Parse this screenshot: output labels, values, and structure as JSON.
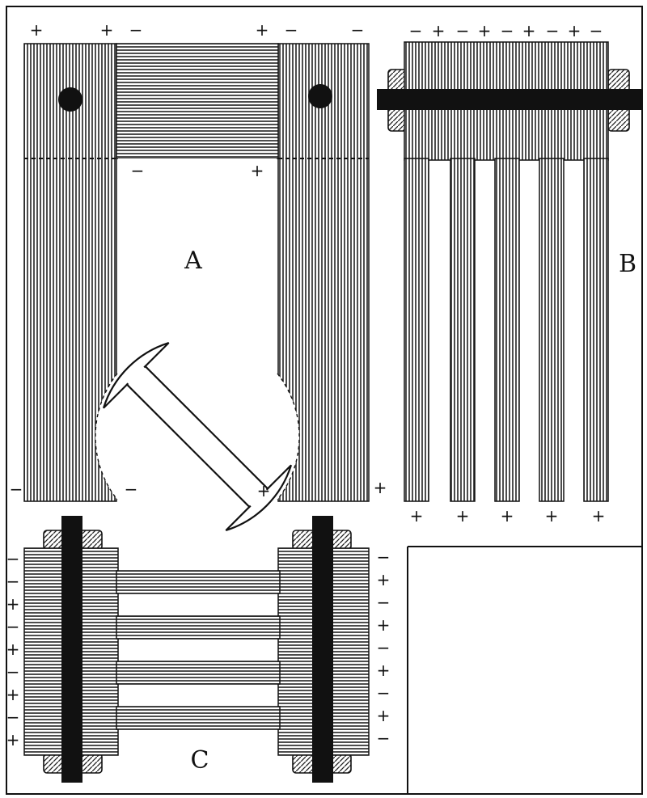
{
  "figure": {
    "labels": {
      "a": "A",
      "b": "B",
      "c": "C"
    },
    "colors": {
      "ink": "#111111",
      "paper": "#ffffff",
      "hatch": "#222222"
    },
    "polarity": {
      "a_top": [
        "+",
        "+",
        "−",
        "+",
        "−",
        "−"
      ],
      "a_inner": [
        "−",
        "+"
      ],
      "a_bottom": [
        "−",
        "−",
        "+",
        "+"
      ],
      "b_top": [
        "−",
        "+",
        "−",
        "+",
        "−",
        "+",
        "−",
        "+",
        "−"
      ],
      "b_bottom": [
        "+",
        "+",
        "+",
        "+",
        "+"
      ],
      "c_left": [
        "−",
        "−",
        "+",
        "−",
        "+",
        "−",
        "+",
        "−",
        "+"
      ],
      "c_right": [
        "−",
        "+",
        "−",
        "+",
        "−",
        "+",
        "−",
        "+",
        "−"
      ]
    }
  }
}
